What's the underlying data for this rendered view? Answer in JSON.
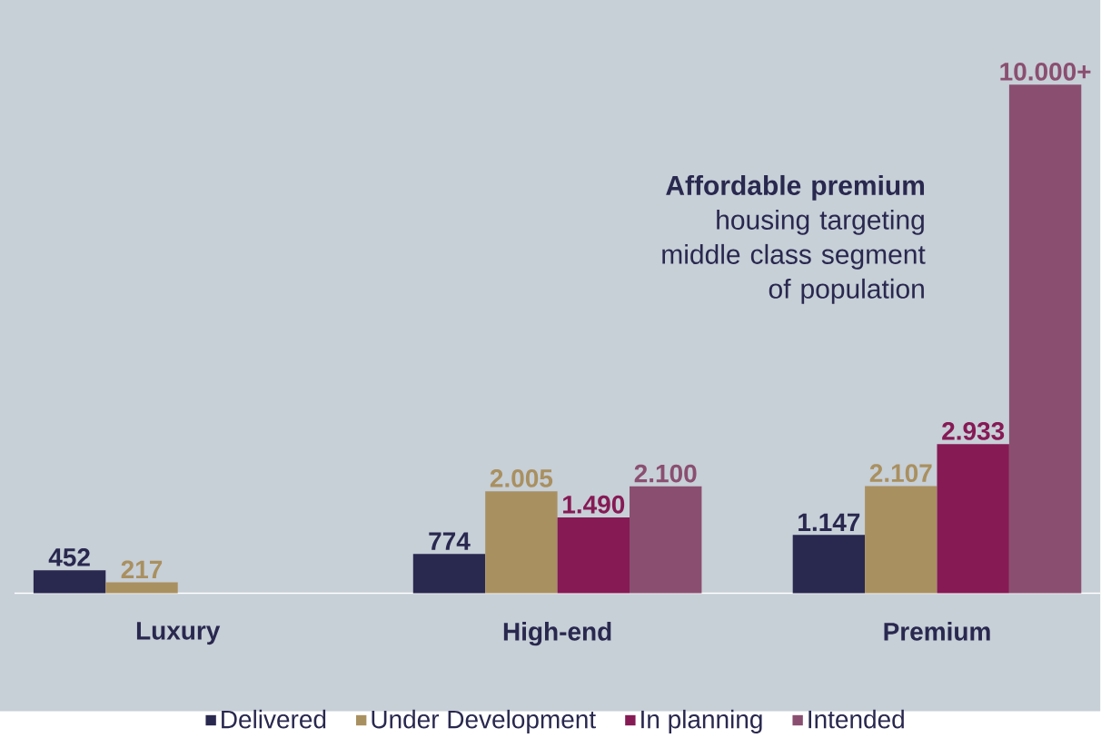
{
  "chart_data": {
    "type": "bar",
    "categories": [
      "Luxury",
      "High-end",
      "Premium"
    ],
    "series": [
      {
        "name": "Delivered",
        "color": "#29284f",
        "values": [
          452,
          774,
          1147
        ],
        "value_labels": [
          "452",
          "774",
          "1.147"
        ]
      },
      {
        "name": "Under Development",
        "color": "#a99060",
        "values": [
          217,
          2005,
          2107
        ],
        "value_labels": [
          "217",
          "2.005",
          "2.107"
        ]
      },
      {
        "name": "In planning",
        "color": "#861a55",
        "values": [
          null,
          1490,
          2933
        ],
        "value_labels": [
          null,
          "1.490",
          "2.933"
        ]
      },
      {
        "name": "Intended",
        "color": "#8a4f70",
        "values": [
          null,
          2100,
          10000
        ],
        "value_labels": [
          null,
          "2.100",
          "10.000+"
        ]
      }
    ],
    "annotations": [
      "**Affordable premium** housing targeting middle class segment of population"
    ],
    "legend": "bottom"
  }
}
